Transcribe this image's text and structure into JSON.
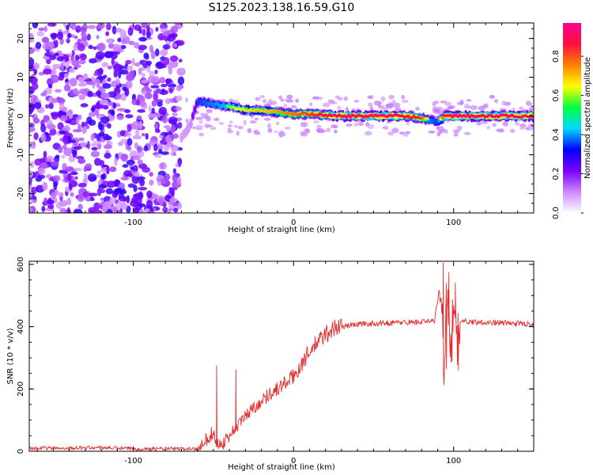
{
  "figure": {
    "title": "S125.2023.138.16.59.G10"
  },
  "chart_data": [
    {
      "type": "heatmap",
      "title": "",
      "xlabel": "Height of straight line (km)",
      "ylabel": "Frequency (Hz)",
      "xlim": [
        -165,
        150
      ],
      "ylim": [
        -25,
        24
      ],
      "xticks": [
        -100,
        0,
        100
      ],
      "yticks": [
        -20,
        -10,
        0,
        10,
        20
      ],
      "grid": false,
      "colorbar": {
        "label": "Normalized spectral amplitude",
        "range": [
          0,
          0.97
        ],
        "ticks": [
          0.0,
          0.2,
          0.4,
          0.6,
          0.8
        ],
        "colors": [
          "#ffffff",
          "#cc88ff",
          "#7a00ff",
          "#0000ff",
          "#00d8ff",
          "#00ff40",
          "#ffff00",
          "#ff8000",
          "#ff1040",
          "#ff0090"
        ]
      },
      "noise_region": {
        "x": [
          -165,
          -70
        ],
        "amplitude": 0.2
      },
      "ridge": {
        "description_points_x": [
          -70,
          -65,
          -62,
          -60,
          -50,
          -40,
          -30,
          -20,
          -10,
          0,
          10,
          20,
          30,
          40,
          50,
          60,
          70,
          80,
          85,
          90,
          95,
          100,
          110,
          120,
          130,
          140,
          150
        ],
        "frequency": [
          -5.5,
          -3,
          1,
          4,
          3,
          2.5,
          1.5,
          1.5,
          1,
          0.5,
          0.5,
          0.2,
          0,
          0,
          0,
          0,
          0,
          -0.5,
          -1,
          -1.5,
          0,
          0,
          0,
          0,
          0,
          0,
          0
        ],
        "amplitude": [
          0.35,
          0.4,
          0.45,
          0.5,
          0.55,
          0.6,
          0.7,
          0.72,
          0.75,
          0.8,
          0.85,
          0.9,
          0.95,
          0.95,
          0.95,
          0.95,
          0.9,
          0.85,
          0.55,
          0.5,
          0.95,
          0.95,
          0.95,
          0.95,
          0.95,
          0.95,
          0.9
        ]
      }
    },
    {
      "type": "line",
      "title": "",
      "xlabel": "Height of straight line (km)",
      "ylabel": "SNR (10 * v/v)",
      "xlim": [
        -165,
        150
      ],
      "ylim": [
        0,
        610
      ],
      "xticks": [
        -100,
        0,
        100
      ],
      "yticks": [
        0,
        200,
        400,
        600
      ],
      "grid": false,
      "series": [
        {
          "color": "#e8282a",
          "x": [
            -165,
            -140,
            -120,
            -100,
            -80,
            -60,
            -56,
            -53,
            -51,
            -48,
            -45,
            -42,
            -40,
            -38,
            -35,
            -30,
            -25,
            -20,
            -15,
            -10,
            -5,
            0,
            5,
            10,
            15,
            20,
            25,
            30,
            40,
            50,
            60,
            70,
            80,
            88,
            92,
            94,
            96,
            98,
            100,
            102,
            104,
            110,
            120,
            130,
            140,
            150
          ],
          "values": [
            10,
            10,
            12,
            8,
            8,
            8,
            40,
            35,
            60,
            30,
            20,
            40,
            50,
            65,
            80,
            115,
            140,
            160,
            185,
            200,
            220,
            240,
            280,
            320,
            350,
            375,
            395,
            400,
            408,
            410,
            412,
            414,
            415,
            418,
            550,
            280,
            560,
            300,
            500,
            330,
            420,
            416,
            414,
            412,
            410,
            408
          ]
        }
      ],
      "spikes": [
        {
          "x": -48,
          "y": 275
        },
        {
          "x": -36,
          "y": 262
        },
        {
          "x": 93.5,
          "y": 605
        },
        {
          "x": 95.5,
          "y": 265
        },
        {
          "x": 97,
          "y": 575
        },
        {
          "x": 99,
          "y": 290
        },
        {
          "x": 101,
          "y": 540
        },
        {
          "x": 103,
          "y": 260
        }
      ]
    }
  ]
}
